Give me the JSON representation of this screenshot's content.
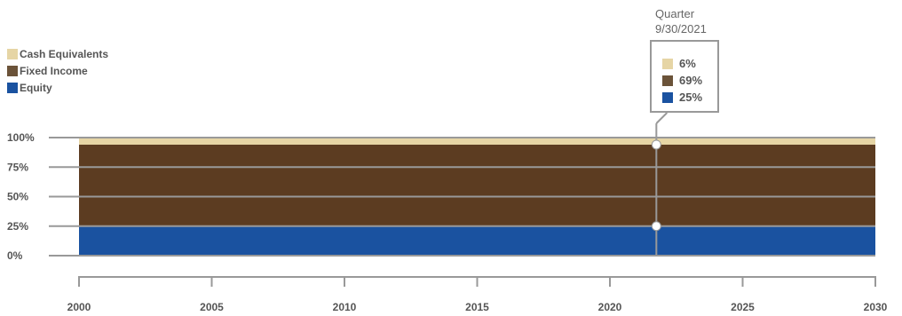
{
  "colors": {
    "cash": "#e6d5a5",
    "fixed": "#5c3c21",
    "equity": "#1a52a0",
    "grid": "#999999",
    "text": "#555555"
  },
  "legend": [
    {
      "label": "Cash Equivalents",
      "color": "#e6d5a5"
    },
    {
      "label": "Fixed Income",
      "color": "#6b5339"
    },
    {
      "label": "Equity",
      "color": "#1a52a0"
    }
  ],
  "tooltip": {
    "title": "Quarter",
    "date": "9/30/2021",
    "rows": [
      {
        "value": "6%",
        "color": "#e6d5a5"
      },
      {
        "value": "69%",
        "color": "#6b5339"
      },
      {
        "value": "25%",
        "color": "#1a52a0"
      }
    ]
  },
  "chart_data": {
    "type": "area",
    "stacked": true,
    "x_range": [
      2000,
      2030
    ],
    "x_ticks": [
      "2000",
      "2005",
      "2010",
      "2015",
      "2020",
      "2025",
      "2030"
    ],
    "y_ticks": [
      "0%",
      "25%",
      "50%",
      "75%",
      "100%"
    ],
    "ylim": [
      0,
      100
    ],
    "series": [
      {
        "name": "Equity",
        "color": "#1a52a0",
        "x": [
          2000,
          2030
        ],
        "values": [
          25,
          25
        ]
      },
      {
        "name": "Fixed Income",
        "color": "#5c3c21",
        "x": [
          2000,
          2030
        ],
        "values": [
          69,
          69
        ]
      },
      {
        "name": "Cash Equivalents",
        "color": "#e6d5a5",
        "x": [
          2000,
          2030
        ],
        "values": [
          6,
          6
        ]
      }
    ],
    "marker_x": 2021.75,
    "grid": true,
    "legend_position": "top-left"
  }
}
